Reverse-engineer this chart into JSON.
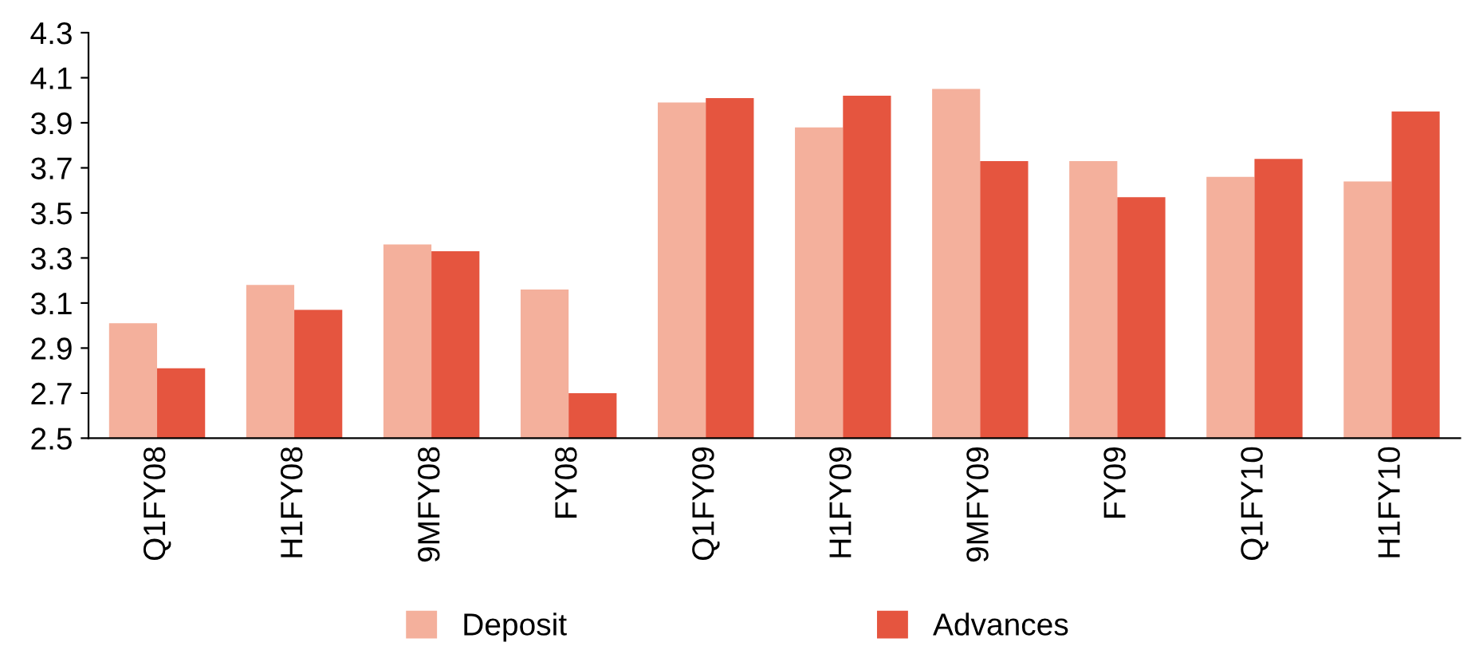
{
  "chart_data": {
    "type": "bar",
    "categories": [
      "Q1FY08",
      "H1FY08",
      "9MFY08",
      "FY08",
      "Q1FY09",
      "H1FY09",
      "9MFY09",
      "FY09",
      "Q1FY10",
      "H1FY10"
    ],
    "series": [
      {
        "name": "Deposit",
        "color": "#f4b09c",
        "values": [
          3.01,
          3.18,
          3.36,
          3.16,
          3.99,
          3.88,
          4.05,
          3.73,
          3.66,
          3.64
        ]
      },
      {
        "name": "Advances",
        "color": "#e5553f",
        "values": [
          2.81,
          3.07,
          3.33,
          2.7,
          4.01,
          4.02,
          3.73,
          3.57,
          3.74,
          3.95
        ]
      }
    ],
    "ylim": [
      2.5,
      4.3
    ],
    "yticks": [
      {
        "value": 2.5,
        "label": "2.5"
      },
      {
        "value": 2.7,
        "label": "2.7"
      },
      {
        "value": 2.9,
        "label": "2.9"
      },
      {
        "value": 3.1,
        "label": "3.1"
      },
      {
        "value": 3.3,
        "label": "3.3"
      },
      {
        "value": 3.5,
        "label": "3.5"
      },
      {
        "value": 3.7,
        "label": "3.7"
      },
      {
        "value": 3.9,
        "label": "3.9"
      },
      {
        "value": 4.1,
        "label": "4.1"
      },
      {
        "value": 4.3,
        "label": "4.3"
      }
    ],
    "grid": false,
    "legend": "bottom"
  }
}
